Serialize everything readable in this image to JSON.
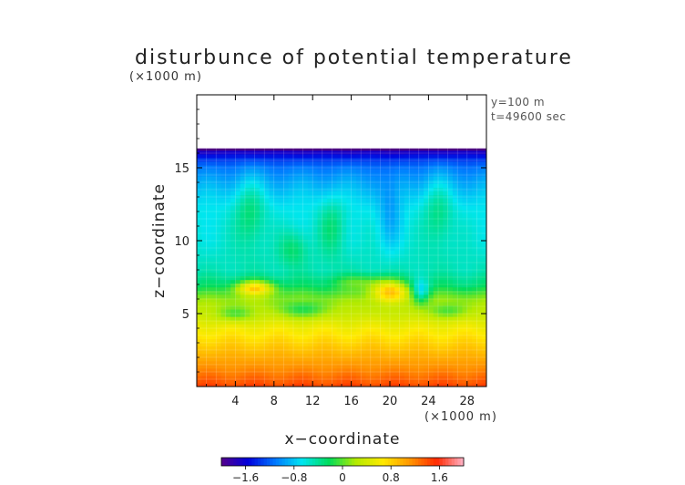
{
  "chart_data": {
    "type": "heatmap",
    "title": "disturbunce of potential temperature",
    "xlabel": "x−coordinate",
    "ylabel": "z−coordinate",
    "x_unit": "(×1000 m)",
    "y_unit": "(×1000 m)",
    "annotations": [
      "y=100 m",
      "t=49600 sec"
    ],
    "xlim": [
      0,
      30
    ],
    "ylim": [
      0,
      20
    ],
    "x_ticks": [
      4,
      8,
      12,
      16,
      20,
      24,
      28
    ],
    "x_tick_labels": [
      "4",
      "8",
      "12",
      "16",
      "20",
      "24",
      "28"
    ],
    "y_ticks": [
      5,
      10,
      15
    ],
    "y_tick_labels": [
      "5",
      "10",
      "15"
    ],
    "colorbar": {
      "range": [
        -2.0,
        2.0
      ],
      "ticks": [
        -1.6,
        -0.8,
        0,
        0.8,
        1.6
      ],
      "tick_labels": [
        "−1.6",
        "−0.8",
        "0",
        "0.8",
        "1.6"
      ],
      "colors": [
        "#55008b",
        "#0000dd",
        "#0078ff",
        "#00e6f0",
        "#00dc5a",
        "#b4ea00",
        "#ffea00",
        "#ff9600",
        "#ff2800",
        "#ffb4c8"
      ]
    },
    "domain_top_km": 16.2,
    "grid": true,
    "profile": {
      "z": [
        0,
        1,
        2,
        3,
        4,
        5,
        6,
        7,
        8,
        9,
        10,
        11,
        12,
        13,
        14,
        15,
        15.5,
        16,
        16.2
      ],
      "value": [
        1.45,
        1.2,
        1.0,
        0.8,
        0.6,
        0.35,
        0.15,
        -0.3,
        -0.5,
        -0.55,
        -0.6,
        -0.62,
        -0.65,
        -0.75,
        -0.9,
        -1.1,
        -1.3,
        -1.6,
        -1.8
      ]
    },
    "features": [
      {
        "x": 6.0,
        "z": 6.8,
        "amp": 1.0,
        "rx": 2.0,
        "rz": 0.5
      },
      {
        "x": 20.0,
        "z": 6.6,
        "amp": 0.95,
        "rx": 2.0,
        "rz": 0.7
      },
      {
        "x": 4.0,
        "z": 5.0,
        "amp": -0.4,
        "rx": 1.8,
        "rz": 0.5
      },
      {
        "x": 11.0,
        "z": 5.3,
        "amp": -0.45,
        "rx": 2.5,
        "rz": 0.6
      },
      {
        "x": 26.0,
        "z": 5.2,
        "amp": -0.35,
        "rx": 2.0,
        "rz": 0.5
      },
      {
        "x": 23.2,
        "z": 6.5,
        "amp": -0.6,
        "rx": 0.9,
        "rz": 0.8
      },
      {
        "x": 5.5,
        "z": 12.0,
        "amp": 0.35,
        "rx": 1.6,
        "rz": 2.5
      },
      {
        "x": 10.0,
        "z": 9.5,
        "amp": 0.3,
        "rx": 1.5,
        "rz": 1.2
      },
      {
        "x": 14.0,
        "z": 11.0,
        "amp": 0.3,
        "rx": 1.4,
        "rz": 2.0
      },
      {
        "x": 20.0,
        "z": 12.0,
        "amp": -0.3,
        "rx": 1.2,
        "rz": 2.5
      },
      {
        "x": 25.0,
        "z": 12.0,
        "amp": 0.3,
        "rx": 1.5,
        "rz": 2.5
      },
      {
        "x": 17.0,
        "z": 7.2,
        "amp": 0.35,
        "rx": 3.0,
        "rz": 0.5
      }
    ]
  }
}
